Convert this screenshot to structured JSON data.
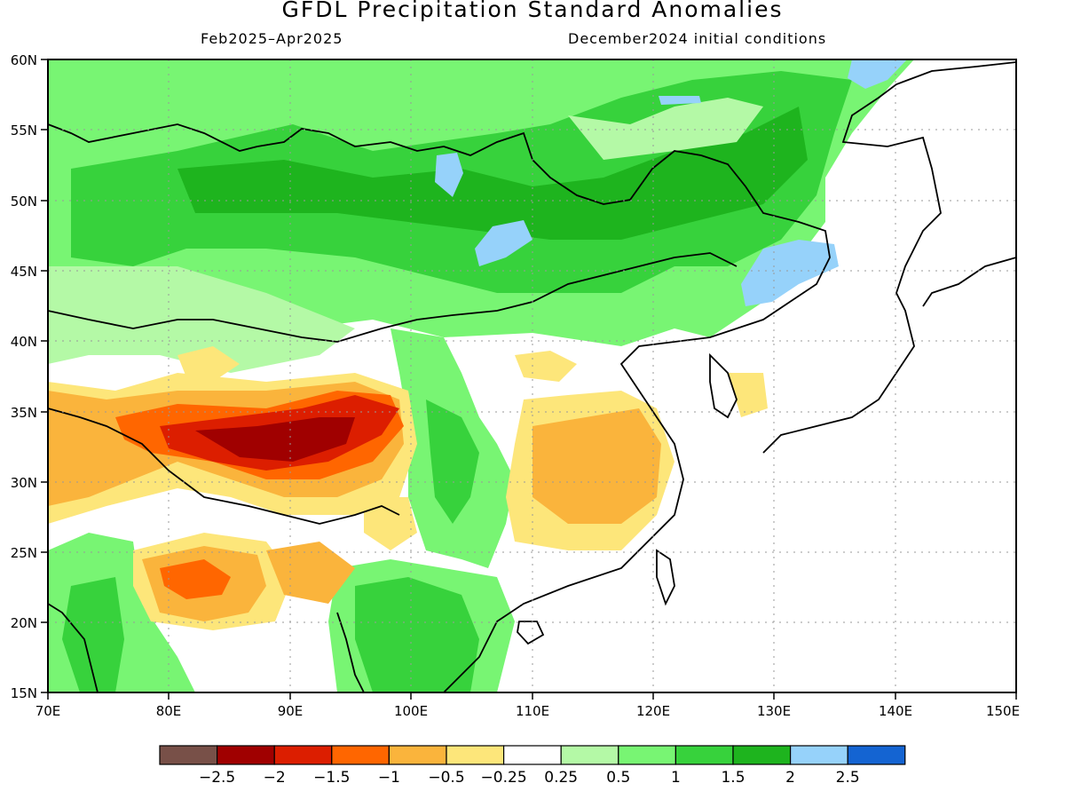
{
  "title": "GFDL Precipitation Standard Anomalies",
  "subtitle_left": "Feb2025–Apr2025",
  "subtitle_right": "December2024 initial conditions",
  "lat_labels": [
    "60N",
    "55N",
    "50N",
    "45N",
    "40N",
    "35N",
    "30N",
    "25N",
    "20N",
    "15N"
  ],
  "lon_labels": [
    "70E",
    "80E",
    "90E",
    "100E",
    "110E",
    "120E",
    "130E",
    "140E",
    "150E"
  ],
  "colorbar": {
    "colors": [
      "#785048",
      "#a00000",
      "#dc1e00",
      "#ff6600",
      "#fab43c",
      "#fde67a",
      "#ffffff",
      "#b4f9a6",
      "#78f573",
      "#37d23c",
      "#1eb41e",
      "#96d2fa",
      "#1464d2"
    ],
    "labels": [
      "−2.5",
      "−2",
      "−1.5",
      "−1",
      "−0.5",
      "−0.25",
      "0.25",
      "0.5",
      "1",
      "1.5",
      "2",
      "2.5"
    ]
  }
}
